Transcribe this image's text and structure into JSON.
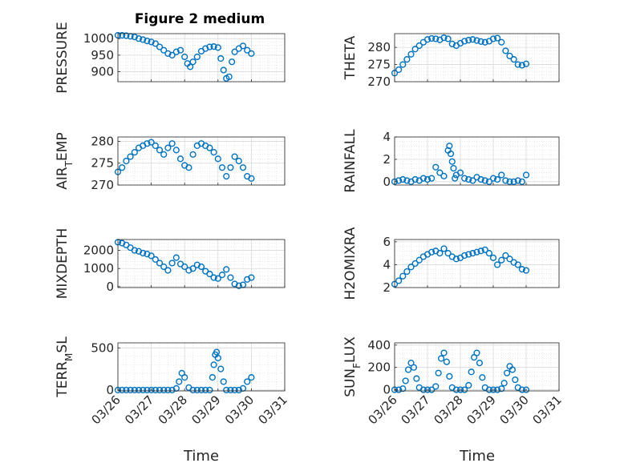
{
  "figure": {
    "title": "Figure 2 medium",
    "xlabel": "Time"
  },
  "style": {
    "marker_color": "#0072BD",
    "axis_color": "#262626",
    "grid_color": "#d9d9d9",
    "background": "#ffffff"
  },
  "chart_data": [
    {
      "type": "scatter",
      "ylabel": "PRESSURE",
      "ylim": [
        870,
        1015
      ],
      "yticks": [
        "1000",
        "950",
        "900"
      ],
      "ytick_values": [
        1000,
        950,
        900
      ],
      "xlim": [
        "03/26",
        "03/31"
      ],
      "xticks": [],
      "xtick_labels_shown": false,
      "grid": true,
      "marker": "open-circle",
      "x": [
        "03/26 00:00",
        "03/26 03:00",
        "03/26 06:00",
        "03/26 09:00",
        "03/26 12:00",
        "03/26 15:00",
        "03/26 18:00",
        "03/26 21:00",
        "03/27 00:00",
        "03/27 03:00",
        "03/27 06:00",
        "03/27 09:00",
        "03/27 12:00",
        "03/27 15:00",
        "03/27 18:00",
        "03/27 21:00",
        "03/28 00:00",
        "03/28 02:00",
        "03/28 04:00",
        "03/28 06:00",
        "03/28 09:00",
        "03/28 12:00",
        "03/28 15:00",
        "03/28 18:00",
        "03/28 21:00",
        "03/29 00:00",
        "03/29 02:00",
        "03/29 04:00",
        "03/29 06:00",
        "03/29 08:00",
        "03/29 10:00",
        "03/29 12:00",
        "03/29 15:00",
        "03/29 18:00",
        "03/29 21:00",
        "03/30 00:00"
      ],
      "y": [
        1010,
        1010,
        1009,
        1007,
        1005,
        1000,
        997,
        993,
        990,
        985,
        975,
        965,
        955,
        950,
        960,
        965,
        945,
        925,
        915,
        930,
        945,
        962,
        970,
        975,
        976,
        973,
        940,
        905,
        880,
        885,
        930,
        960,
        970,
        978,
        965,
        955
      ]
    },
    {
      "type": "scatter",
      "ylabel": "THETA",
      "ylim": [
        270,
        284
      ],
      "yticks": [
        "280",
        "275",
        "270"
      ],
      "ytick_values": [
        280,
        275,
        270
      ],
      "xlim": [
        "03/26",
        "03/31"
      ],
      "xticks": [],
      "xtick_labels_shown": false,
      "grid": true,
      "marker": "open-circle",
      "x": [
        "03/26 00:00",
        "03/26 03:00",
        "03/26 06:00",
        "03/26 09:00",
        "03/26 12:00",
        "03/26 15:00",
        "03/26 18:00",
        "03/26 21:00",
        "03/27 00:00",
        "03/27 03:00",
        "03/27 06:00",
        "03/27 09:00",
        "03/27 12:00",
        "03/27 15:00",
        "03/27 18:00",
        "03/27 21:00",
        "03/28 00:00",
        "03/28 03:00",
        "03/28 06:00",
        "03/28 09:00",
        "03/28 12:00",
        "03/28 15:00",
        "03/28 18:00",
        "03/28 21:00",
        "03/29 00:00",
        "03/29 03:00",
        "03/29 06:00",
        "03/29 09:00",
        "03/29 12:00",
        "03/29 15:00",
        "03/29 18:00",
        "03/29 21:00",
        "03/30 00:00"
      ],
      "y": [
        272.5,
        273.5,
        275,
        276.5,
        278,
        279.5,
        280.5,
        281.5,
        282.3,
        282.6,
        282.5,
        282.2,
        282.8,
        282.5,
        281,
        280.5,
        281.2,
        281.8,
        282.1,
        282.3,
        282,
        281.7,
        281.5,
        281.8,
        282.5,
        282.7,
        281.5,
        279,
        277.5,
        276.5,
        275,
        274.8,
        275.2
      ]
    },
    {
      "type": "scatter",
      "ylabel": "AIR_TEMP",
      "ylim": [
        270,
        281
      ],
      "yticks": [
        "280",
        "275",
        "270"
      ],
      "ytick_values": [
        280,
        275,
        270
      ],
      "xlim": [
        "03/26",
        "03/31"
      ],
      "xticks": [],
      "xtick_labels_shown": false,
      "grid": true,
      "marker": "open-circle",
      "x": [
        "03/26 00:00",
        "03/26 03:00",
        "03/26 06:00",
        "03/26 09:00",
        "03/26 12:00",
        "03/26 15:00",
        "03/26 18:00",
        "03/26 21:00",
        "03/27 00:00",
        "03/27 03:00",
        "03/27 06:00",
        "03/27 09:00",
        "03/27 12:00",
        "03/27 15:00",
        "03/27 18:00",
        "03/27 21:00",
        "03/28 00:00",
        "03/28 03:00",
        "03/28 06:00",
        "03/28 09:00",
        "03/28 12:00",
        "03/28 15:00",
        "03/28 18:00",
        "03/28 21:00",
        "03/29 00:00",
        "03/29 03:00",
        "03/29 06:00",
        "03/29 09:00",
        "03/29 12:00",
        "03/29 15:00",
        "03/29 18:00",
        "03/29 21:00",
        "03/30 00:00"
      ],
      "y": [
        273,
        274,
        275.5,
        276.5,
        277.5,
        278.5,
        279,
        279.5,
        279.8,
        279,
        278,
        277,
        278.5,
        279.5,
        278,
        276,
        274.5,
        274,
        277,
        279,
        279.5,
        279,
        278.5,
        277.5,
        276,
        274,
        272,
        274,
        276.5,
        275.5,
        274,
        272,
        271.5
      ]
    },
    {
      "type": "scatter",
      "ylabel": "RAINFALL",
      "ylim": [
        -0.3,
        4
      ],
      "yticks": [
        "4",
        "2",
        "0"
      ],
      "ytick_values": [
        4,
        2,
        0
      ],
      "xlim": [
        "03/26",
        "03/31"
      ],
      "xticks": [],
      "xtick_labels_shown": false,
      "grid": true,
      "marker": "open-circle",
      "x": [
        "03/26 00:00",
        "03/26 03:00",
        "03/26 06:00",
        "03/26 09:00",
        "03/26 12:00",
        "03/26 15:00",
        "03/26 18:00",
        "03/26 21:00",
        "03/27 00:00",
        "03/27 03:00",
        "03/27 06:00",
        "03/27 09:00",
        "03/27 12:00",
        "03/27 15:00",
        "03/27 16:00",
        "03/27 17:00",
        "03/27 18:00",
        "03/27 19:00",
        "03/27 20:00",
        "03/27 21:00",
        "03/28 00:00",
        "03/28 03:00",
        "03/28 06:00",
        "03/28 09:00",
        "03/28 12:00",
        "03/28 15:00",
        "03/28 18:00",
        "03/28 21:00",
        "03/29 00:00",
        "03/29 03:00",
        "03/29 06:00",
        "03/29 09:00",
        "03/29 12:00",
        "03/29 15:00",
        "03/29 18:00",
        "03/29 21:00",
        "03/30 00:00"
      ],
      "y": [
        0,
        0.1,
        0.2,
        0.1,
        0,
        0.2,
        0.1,
        0.3,
        0.2,
        0.3,
        1.3,
        0.8,
        0.5,
        2.8,
        3.2,
        2.5,
        1.8,
        1.2,
        0.3,
        0.6,
        0.8,
        0.3,
        0.2,
        0.1,
        0.4,
        0.2,
        0.1,
        0,
        0.3,
        0.2,
        0.6,
        0.1,
        0,
        0,
        0.1,
        0,
        0.6
      ]
    },
    {
      "type": "scatter",
      "ylabel": "MIXDEPTH",
      "ylim": [
        -50,
        2600
      ],
      "yticks": [
        "2000",
        "1000",
        "0"
      ],
      "ytick_values": [
        2000,
        1000,
        0
      ],
      "xlim": [
        "03/26",
        "03/31"
      ],
      "xticks": [],
      "xtick_labels_shown": false,
      "grid": true,
      "marker": "open-circle",
      "x": [
        "03/26 00:00",
        "03/26 03:00",
        "03/26 06:00",
        "03/26 09:00",
        "03/26 12:00",
        "03/26 15:00",
        "03/26 18:00",
        "03/26 21:00",
        "03/27 00:00",
        "03/27 03:00",
        "03/27 06:00",
        "03/27 09:00",
        "03/27 12:00",
        "03/27 15:00",
        "03/27 18:00",
        "03/27 21:00",
        "03/28 00:00",
        "03/28 03:00",
        "03/28 06:00",
        "03/28 09:00",
        "03/28 12:00",
        "03/28 15:00",
        "03/28 18:00",
        "03/28 21:00",
        "03/29 00:00",
        "03/29 03:00",
        "03/29 06:00",
        "03/29 09:00",
        "03/29 12:00",
        "03/29 15:00",
        "03/29 18:00",
        "03/29 21:00",
        "03/30 00:00"
      ],
      "y": [
        2450,
        2400,
        2300,
        2150,
        2000,
        1950,
        1850,
        1800,
        1700,
        1500,
        1300,
        1100,
        900,
        1300,
        1600,
        1250,
        1100,
        900,
        1000,
        1200,
        1100,
        850,
        700,
        500,
        450,
        650,
        950,
        500,
        150,
        50,
        100,
        400,
        500
      ]
    },
    {
      "type": "scatter",
      "ylabel": "H2OMIXRA",
      "ylim": [
        2,
        6.2
      ],
      "yticks": [
        "6",
        "4",
        "2"
      ],
      "ytick_values": [
        6,
        4,
        2
      ],
      "xlim": [
        "03/26",
        "03/31"
      ],
      "xticks": [],
      "xtick_labels_shown": false,
      "grid": true,
      "marker": "open-circle",
      "x": [
        "03/26 00:00",
        "03/26 03:00",
        "03/26 06:00",
        "03/26 09:00",
        "03/26 12:00",
        "03/26 15:00",
        "03/26 18:00",
        "03/26 21:00",
        "03/27 00:00",
        "03/27 03:00",
        "03/27 06:00",
        "03/27 09:00",
        "03/27 12:00",
        "03/27 15:00",
        "03/27 18:00",
        "03/27 21:00",
        "03/28 00:00",
        "03/28 03:00",
        "03/28 06:00",
        "03/28 09:00",
        "03/28 12:00",
        "03/28 15:00",
        "03/28 18:00",
        "03/28 21:00",
        "03/29 00:00",
        "03/29 03:00",
        "03/29 06:00",
        "03/29 09:00",
        "03/29 12:00",
        "03/29 15:00",
        "03/29 18:00",
        "03/29 21:00",
        "03/30 00:00"
      ],
      "y": [
        2.3,
        2.6,
        3.0,
        3.4,
        3.8,
        4.1,
        4.4,
        4.7,
        4.9,
        5.1,
        5.2,
        5.0,
        5.4,
        5.0,
        4.7,
        4.5,
        4.6,
        4.8,
        4.9,
        5.0,
        5.1,
        5.2,
        5.3,
        5.0,
        4.6,
        4.0,
        4.4,
        4.8,
        4.5,
        4.2,
        4.0,
        3.6,
        3.5
      ]
    },
    {
      "type": "scatter",
      "ylabel": "TERR_MSL",
      "ylim": [
        -10,
        560
      ],
      "yticks": [
        "500",
        "0"
      ],
      "ytick_values": [
        500,
        0
      ],
      "xlim": [
        "03/26",
        "03/31"
      ],
      "xticks": [
        "03/26",
        "03/27",
        "03/28",
        "03/29",
        "03/30",
        "03/31"
      ],
      "xtick_labels_shown": true,
      "grid": true,
      "marker": "open-circle",
      "x": [
        "03/26 00:00",
        "03/26 03:00",
        "03/26 06:00",
        "03/26 09:00",
        "03/26 12:00",
        "03/26 15:00",
        "03/26 18:00",
        "03/26 21:00",
        "03/27 00:00",
        "03/27 03:00",
        "03/27 06:00",
        "03/27 09:00",
        "03/27 12:00",
        "03/27 15:00",
        "03/27 18:00",
        "03/27 20:00",
        "03/27 22:00",
        "03/28 00:00",
        "03/28 03:00",
        "03/28 06:00",
        "03/28 09:00",
        "03/28 12:00",
        "03/28 15:00",
        "03/28 18:00",
        "03/28 20:00",
        "03/28 21:00",
        "03/28 22:00",
        "03/28 23:00",
        "03/29 00:00",
        "03/29 02:00",
        "03/29 04:00",
        "03/29 06:00",
        "03/29 09:00",
        "03/29 12:00",
        "03/29 15:00",
        "03/29 18:00",
        "03/29 21:00",
        "03/30 00:00"
      ],
      "y": [
        0,
        0,
        0,
        0,
        0,
        0,
        0,
        0,
        0,
        0,
        0,
        0,
        0,
        0,
        20,
        100,
        200,
        150,
        30,
        0,
        0,
        0,
        0,
        0,
        150,
        300,
        420,
        450,
        380,
        250,
        100,
        0,
        0,
        0,
        0,
        20,
        100,
        150
      ]
    },
    {
      "type": "scatter",
      "ylabel": "SUN_FLUX",
      "ylim": [
        -10,
        420
      ],
      "yticks": [
        "400",
        "200",
        "0"
      ],
      "ytick_values": [
        400,
        200,
        0
      ],
      "xlim": [
        "03/26",
        "03/31"
      ],
      "xticks": [
        "03/26",
        "03/27",
        "03/28",
        "03/29",
        "03/30",
        "03/31"
      ],
      "xtick_labels_shown": true,
      "grid": true,
      "marker": "open-circle",
      "x": [
        "03/26 00:00",
        "03/26 03:00",
        "03/26 06:00",
        "03/26 08:00",
        "03/26 10:00",
        "03/26 12:00",
        "03/26 14:00",
        "03/26 16:00",
        "03/26 18:00",
        "03/26 21:00",
        "03/27 00:00",
        "03/27 03:00",
        "03/27 06:00",
        "03/27 08:00",
        "03/27 10:00",
        "03/27 12:00",
        "03/27 14:00",
        "03/27 16:00",
        "03/27 18:00",
        "03/27 21:00",
        "03/28 00:00",
        "03/28 03:00",
        "03/28 06:00",
        "03/28 08:00",
        "03/28 10:00",
        "03/28 12:00",
        "03/28 14:00",
        "03/28 16:00",
        "03/28 18:00",
        "03/28 21:00",
        "03/29 00:00",
        "03/29 03:00",
        "03/29 06:00",
        "03/29 08:00",
        "03/29 10:00",
        "03/29 12:00",
        "03/29 14:00",
        "03/29 16:00",
        "03/29 18:00",
        "03/29 21:00",
        "03/30 00:00"
      ],
      "y": [
        0,
        0,
        10,
        80,
        180,
        240,
        200,
        100,
        20,
        0,
        0,
        0,
        30,
        150,
        280,
        330,
        250,
        120,
        20,
        0,
        0,
        0,
        40,
        160,
        290,
        330,
        240,
        110,
        20,
        0,
        0,
        0,
        10,
        60,
        150,
        210,
        180,
        90,
        20,
        0,
        0
      ]
    }
  ]
}
